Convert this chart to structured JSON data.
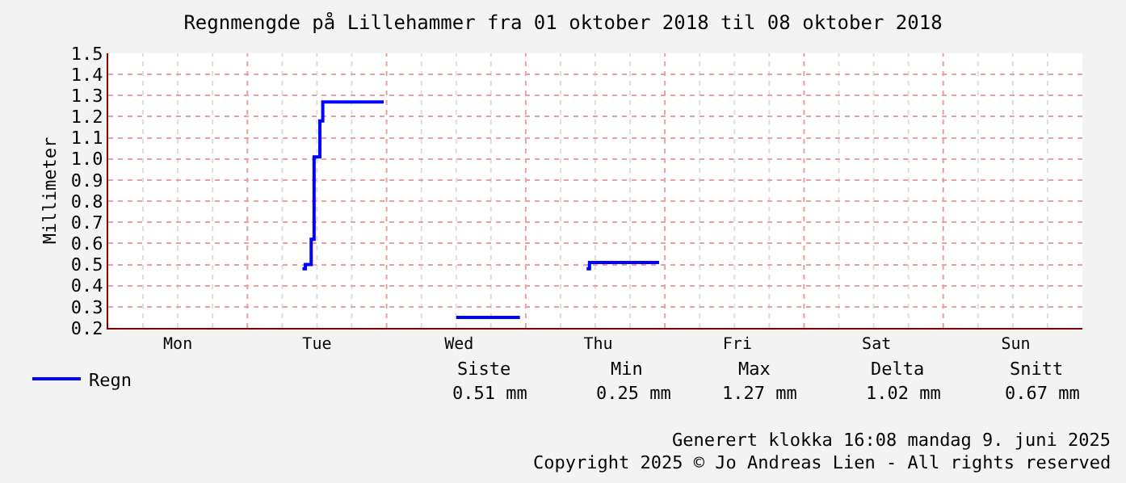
{
  "chart_data": {
    "type": "step",
    "title": "Regnmengde på Lillehammer fra 01 oktober 2018 til 08 oktober 2018",
    "ylabel": "Millimeter",
    "categories": [
      null,
      null,
      null,
      null,
      null,
      null,
      null,
      null,
      null,
      null,
      null,
      null,
      null,
      null,
      null,
      null,
      null,
      null,
      null,
      null,
      null,
      null,
      null,
      null,
      "Mon",
      null,
      null,
      null,
      null,
      null,
      null,
      null,
      null,
      null,
      null,
      null,
      null,
      null,
      null,
      null,
      null,
      null,
      null,
      null,
      null,
      null,
      null,
      null,
      null,
      null,
      null,
      null,
      null,
      null,
      null,
      null,
      null,
      null,
      null,
      null,
      null,
      null,
      null,
      null,
      null,
      null,
      null,
      null,
      null,
      null,
      null,
      null,
      "Tue",
      null,
      null,
      null,
      null,
      null,
      null,
      null,
      null,
      null,
      null,
      null,
      null,
      null,
      null,
      null,
      null,
      null,
      null,
      null,
      null,
      null,
      null,
      null,
      null,
      null,
      null,
      null,
      null,
      null,
      null,
      null,
      null,
      null,
      null,
      null,
      null,
      null,
      null,
      null,
      null,
      null,
      null,
      null,
      null,
      null,
      null,
      null,
      null,
      "Wed",
      null,
      null,
      null,
      null,
      null,
      null,
      null,
      null,
      null,
      null,
      null,
      null,
      null,
      null,
      null,
      null,
      null,
      null,
      null,
      null,
      null,
      null,
      null,
      null,
      null,
      null,
      null,
      null,
      null,
      null,
      null,
      null,
      null,
      null,
      null,
      null,
      null,
      null,
      null,
      null,
      null,
      null,
      null,
      null,
      null,
      null,
      null,
      "Thu",
      null,
      null,
      null,
      null,
      null,
      null,
      null,
      null,
      null,
      null,
      null,
      null,
      null,
      null,
      null,
      null,
      null,
      null,
      null,
      null,
      null,
      null,
      null,
      null,
      null,
      null,
      null,
      null,
      null,
      null,
      null,
      null,
      null,
      null,
      null,
      null,
      null,
      null,
      null,
      null,
      null,
      null,
      null,
      null,
      null,
      null,
      null,
      "Fri",
      null,
      null,
      null,
      null,
      null,
      null,
      null,
      null,
      null,
      null,
      null,
      null,
      null,
      null,
      null,
      null,
      null,
      null,
      null,
      null,
      null,
      null,
      null,
      null,
      null,
      null,
      null,
      null,
      null,
      null,
      null,
      null,
      null,
      null,
      null,
      null,
      null,
      null,
      null,
      null,
      null,
      null,
      null,
      null,
      null,
      null,
      null,
      "Sat",
      null,
      null,
      null,
      null,
      null,
      null,
      null,
      null,
      null,
      null,
      null,
      null,
      null,
      null,
      null,
      null,
      null,
      null,
      null,
      null,
      null,
      null,
      null,
      null,
      null,
      null,
      null,
      null,
      null,
      null,
      null,
      null,
      null,
      null,
      null,
      null,
      null,
      null,
      null,
      null,
      null,
      null,
      null,
      null,
      null,
      null,
      null,
      "Sun",
      null,
      null,
      null,
      null,
      null,
      null,
      null,
      null,
      null,
      null,
      null,
      null,
      null,
      null,
      null,
      null,
      null,
      null,
      null,
      null,
      null,
      null
    ],
    "series": [
      {
        "name": "Regn",
        "color": "#0000ff",
        "values": [
          null,
          null,
          null,
          null,
          null,
          null,
          null,
          null,
          null,
          null,
          null,
          null,
          null,
          null,
          null,
          null,
          null,
          null,
          null,
          null,
          null,
          null,
          null,
          null,
          null,
          null,
          null,
          null,
          null,
          null,
          null,
          null,
          null,
          null,
          null,
          null,
          null,
          null,
          null,
          null,
          null,
          null,
          null,
          null,
          null,
          null,
          null,
          null,
          null,
          null,
          null,
          null,
          null,
          null,
          null,
          null,
          null,
          null,
          null,
          null,
          null,
          null,
          null,
          null,
          null,
          null,
          null,
          0.48,
          0.5,
          0.5,
          0.62,
          1.01,
          1.01,
          1.18,
          1.27,
          1.27,
          1.27,
          1.27,
          1.27,
          1.27,
          1.27,
          1.27,
          1.27,
          1.27,
          1.27,
          1.27,
          1.27,
          1.27,
          1.27,
          1.27,
          1.27,
          1.27,
          1.27,
          1.27,
          1.27,
          1.27,
          null,
          null,
          null,
          null,
          null,
          null,
          null,
          null,
          null,
          null,
          null,
          null,
          null,
          null,
          null,
          null,
          null,
          null,
          null,
          null,
          null,
          null,
          null,
          null,
          0.25,
          0.25,
          0.25,
          0.25,
          0.25,
          0.25,
          0.25,
          0.25,
          0.25,
          0.25,
          0.25,
          0.25,
          0.25,
          0.25,
          0.25,
          0.25,
          0.25,
          0.25,
          0.25,
          0.25,
          0.25,
          0.25,
          0.25,
          null,
          null,
          null,
          null,
          null,
          null,
          null,
          null,
          null,
          null,
          null,
          null,
          null,
          null,
          null,
          null,
          null,
          null,
          null,
          null,
          null,
          null,
          0.48,
          0.51,
          0.51,
          0.51,
          0.51,
          0.51,
          0.51,
          0.51,
          0.51,
          0.51,
          0.51,
          0.51,
          0.51,
          0.51,
          0.51,
          0.51,
          0.51,
          0.51,
          0.51,
          0.51,
          0.51,
          0.51,
          0.51,
          0.51,
          0.51,
          0.51,
          null,
          null,
          null,
          null,
          null,
          null,
          null,
          null,
          null,
          null,
          null,
          null,
          null,
          null,
          null,
          null,
          null,
          null,
          null,
          null,
          null,
          null,
          null,
          null,
          null,
          null,
          null,
          null,
          null,
          null,
          null,
          null,
          null,
          null,
          null,
          null,
          null,
          null,
          null,
          null,
          null,
          null,
          null,
          null,
          null,
          null,
          null,
          null,
          null,
          null,
          null,
          null,
          null,
          null,
          null,
          null,
          null,
          null,
          null,
          null,
          null,
          null,
          null,
          null,
          null,
          null,
          null,
          null,
          null,
          null,
          null,
          null,
          null,
          null,
          null,
          null,
          null,
          null,
          null,
          null,
          null,
          null,
          null,
          null,
          null,
          null,
          null,
          null,
          null,
          null,
          null,
          null,
          null,
          null,
          null,
          null,
          null,
          null,
          null,
          null,
          null,
          null,
          null,
          null,
          null,
          null,
          null,
          null,
          null,
          null,
          null,
          null,
          null,
          null,
          null,
          null,
          null,
          null,
          null,
          null,
          null,
          null,
          null,
          null,
          null,
          null,
          null,
          null,
          null,
          null,
          null,
          null,
          null,
          null,
          null,
          null,
          null,
          null,
          null,
          null,
          null,
          null,
          null,
          null,
          null
        ]
      }
    ],
    "ylim": [
      0.2,
      1.5
    ],
    "yticks": [
      0.2,
      0.3,
      0.4,
      0.5,
      0.6,
      0.7,
      0.8,
      0.9,
      {
        "value": 1,
        "label": "1.0"
      },
      1.1,
      1.2,
      1.3,
      1.4,
      1.5
    ],
    "grid": true,
    "legend": "bottom left",
    "marker": "none",
    "line_style": "solid",
    "annotations": [
      "Siste",
      "Min",
      "Max",
      "Delta",
      "Snitt",
      "0.51 mm",
      "0.25 mm",
      "1.27 mm",
      "1.02 mm",
      "0.67 mm",
      "Generert klokka 16:08 mandag 9. juni 2025",
      "Copyright 2025 © Jo Andreas Lien - All rights reserved"
    ]
  }
}
